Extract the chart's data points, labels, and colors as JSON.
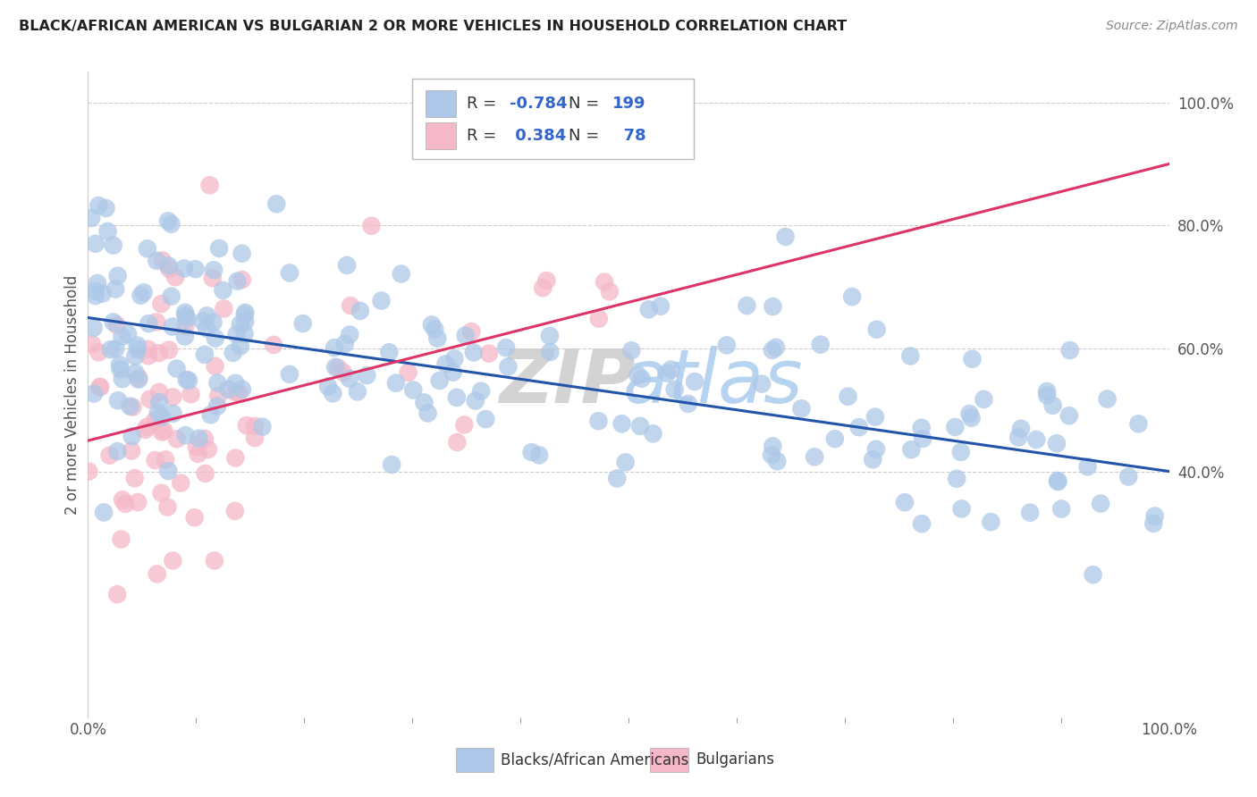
{
  "title": "BLACK/AFRICAN AMERICAN VS BULGARIAN 2 OR MORE VEHICLES IN HOUSEHOLD CORRELATION CHART",
  "source": "Source: ZipAtlas.com",
  "ylabel": "2 or more Vehicles in Household",
  "xlim": [
    0.0,
    100.0
  ],
  "ylim": [
    0.0,
    105.0
  ],
  "blue_R": -0.784,
  "blue_N": 199,
  "pink_R": 0.384,
  "pink_N": 78,
  "blue_color": "#adc8e8",
  "pink_color": "#f5b8c8",
  "blue_line_color": "#2255aa",
  "pink_line_color": "#dd3366",
  "watermark_zip": "ZIP",
  "watermark_atlas": "atlas",
  "legend_label_blue": "Blacks/African Americans",
  "legend_label_pink": "Bulgarians",
  "ytick_values_right": [
    40.0,
    60.0,
    80.0,
    100.0
  ],
  "ytick_labels_right": [
    "40.0%",
    "60.0%",
    "80.0%",
    "100.0%"
  ],
  "blue_seed": 42,
  "pink_seed": 7,
  "blue_x0": 65.0,
  "blue_x100": 40.0,
  "pink_x0": 45.0,
  "pink_x100": 90.0
}
